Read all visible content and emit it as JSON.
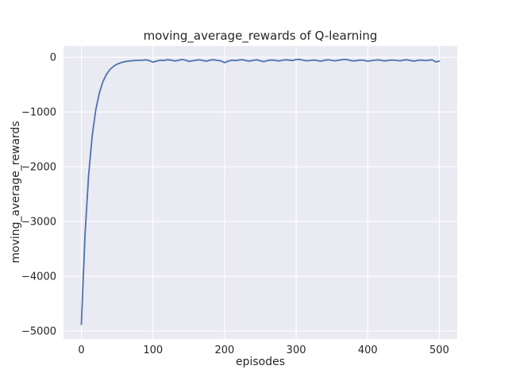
{
  "chart_data": {
    "type": "line",
    "title": "moving_average_rewards of Q-learning",
    "xlabel": "episodes",
    "ylabel": "moving_average_rewards",
    "xticks": [
      0,
      100,
      200,
      300,
      400,
      500
    ],
    "yticks": [
      0,
      -1000,
      -2000,
      -3000,
      -4000,
      -5000
    ],
    "xlim": [
      -25,
      525
    ],
    "ylim": [
      -5145,
      205
    ],
    "grid": true,
    "legend": "none",
    "colors": {
      "line": "#4c72b0",
      "plot_bg": "#eaeaf2",
      "grid": "#ffffff",
      "text": "#262626",
      "figure_bg": "#ffffff"
    },
    "x": [
      0,
      5,
      10,
      15,
      20,
      25,
      30,
      35,
      40,
      45,
      50,
      55,
      60,
      65,
      70,
      75,
      80,
      85,
      90,
      95,
      100,
      105,
      110,
      115,
      120,
      125,
      130,
      135,
      140,
      145,
      150,
      155,
      160,
      165,
      170,
      175,
      180,
      185,
      190,
      195,
      200,
      205,
      210,
      215,
      220,
      225,
      230,
      235,
      240,
      245,
      250,
      255,
      260,
      265,
      270,
      275,
      280,
      285,
      290,
      295,
      300,
      305,
      310,
      315,
      320,
      325,
      330,
      335,
      340,
      345,
      350,
      355,
      360,
      365,
      370,
      375,
      380,
      385,
      390,
      395,
      400,
      405,
      410,
      415,
      420,
      425,
      430,
      435,
      440,
      445,
      450,
      455,
      460,
      465,
      470,
      475,
      480,
      485,
      490,
      495,
      500
    ],
    "y": [
      -4880,
      -3250,
      -2160,
      -1440,
      -965,
      -655,
      -448,
      -312,
      -223,
      -164,
      -125,
      -100,
      -83,
      -71,
      -64,
      -59,
      -56,
      -55,
      -48,
      -62,
      -90,
      -70,
      -55,
      -60,
      -45,
      -52,
      -68,
      -58,
      -42,
      -50,
      -75,
      -65,
      -55,
      -48,
      -60,
      -70,
      -52,
      -45,
      -58,
      -66,
      -98,
      -72,
      -55,
      -60,
      -50,
      -44,
      -62,
      -70,
      -56,
      -48,
      -65,
      -80,
      -60,
      -50,
      -55,
      -68,
      -58,
      -46,
      -52,
      -60,
      -42,
      -38,
      -55,
      -65,
      -58,
      -50,
      -62,
      -70,
      -54,
      -46,
      -58,
      -64,
      -52,
      -44,
      -40,
      -56,
      -68,
      -60,
      -50,
      -58,
      -72,
      -62,
      -54,
      -48,
      -60,
      -66,
      -55,
      -50,
      -58,
      -64,
      -52,
      -46,
      -60,
      -70,
      -56,
      -50,
      -62,
      -55,
      -48,
      -85,
      -70
    ]
  }
}
